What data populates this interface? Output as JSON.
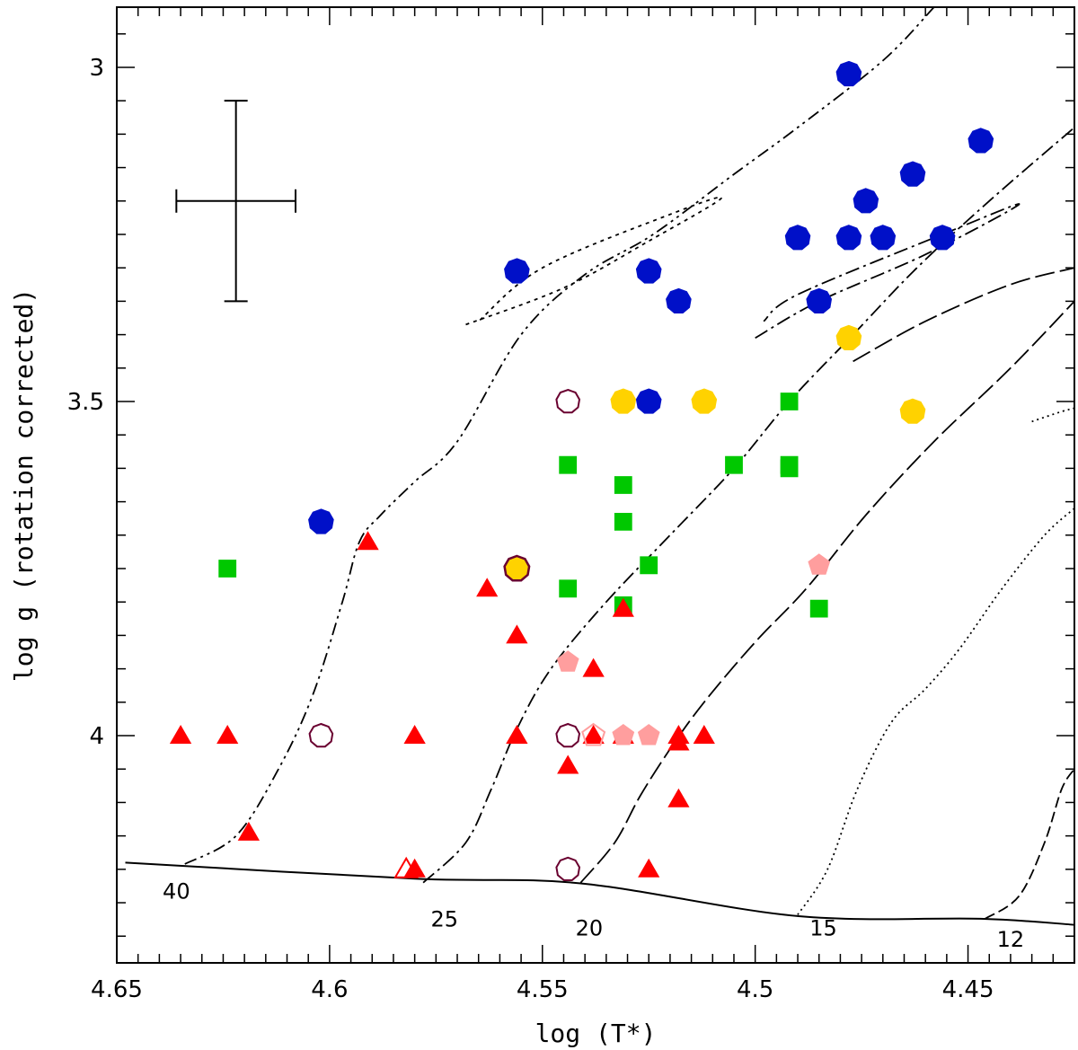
{
  "chart_data": {
    "type": "scatter",
    "xlabel": "log (T*)",
    "ylabel": "log g (rotation corrected)",
    "xlim": [
      4.65,
      4.425
    ],
    "ylim": [
      4.34,
      2.91
    ],
    "x_ticks": [
      {
        "value": 4.65,
        "label": "4.65"
      },
      {
        "value": 4.6,
        "label": "4.6"
      },
      {
        "value": 4.55,
        "label": "4.55"
      },
      {
        "value": 4.5,
        "label": "4.5"
      },
      {
        "value": 4.45,
        "label": "4.45"
      }
    ],
    "y_ticks": [
      {
        "value": 3.0,
        "label": "3"
      },
      {
        "value": 3.5,
        "label": "3.5"
      },
      {
        "value": 4.0,
        "label": "4"
      }
    ],
    "grid": false,
    "legend": "none",
    "zams": [
      [
        4.648,
        4.19
      ],
      [
        4.58,
        4.214
      ],
      [
        4.541,
        4.221
      ],
      [
        4.49,
        4.27
      ],
      [
        4.447,
        4.274
      ],
      [
        4.425,
        4.283
      ]
    ],
    "tracks": [
      {
        "mass_label": "40",
        "label_at": [
          4.636,
          4.233
        ],
        "dash": "14 5 3 5 3 5",
        "points": [
          [
            4.634,
            4.192
          ],
          [
            4.622,
            4.15
          ],
          [
            4.612,
            4.05
          ],
          [
            4.604,
            3.94
          ],
          [
            4.597,
            3.8
          ],
          [
            4.593,
            3.71
          ],
          [
            4.588,
            3.67
          ],
          [
            4.58,
            3.62
          ],
          [
            4.57,
            3.56
          ],
          [
            4.555,
            3.4
          ],
          [
            4.54,
            3.31
          ],
          [
            4.524,
            3.25
          ],
          [
            4.505,
            3.16
          ],
          [
            4.49,
            3.09
          ],
          [
            4.47,
            2.99
          ],
          [
            4.458,
            2.91
          ]
        ]
      },
      {
        "mass_label": "",
        "dash": "4 5",
        "points": [
          [
            4.568,
            3.385
          ],
          [
            4.545,
            3.33
          ],
          [
            4.525,
            3.26
          ],
          [
            4.508,
            3.196
          ],
          [
            4.52,
            3.22
          ],
          [
            4.55,
            3.3
          ],
          [
            4.565,
            3.38
          ]
        ]
      },
      {
        "mass_label": "25",
        "label_at": [
          4.573,
          4.275
        ],
        "dash": "16 5 3 5",
        "points": [
          [
            4.578,
            4.22
          ],
          [
            4.568,
            4.16
          ],
          [
            4.562,
            4.08
          ],
          [
            4.556,
            3.99
          ],
          [
            4.548,
            3.9
          ],
          [
            4.535,
            3.8
          ],
          [
            4.52,
            3.7
          ],
          [
            4.505,
            3.6
          ],
          [
            4.492,
            3.5
          ],
          [
            4.477,
            3.4
          ],
          [
            4.462,
            3.3
          ],
          [
            4.445,
            3.2
          ],
          [
            4.425,
            3.09
          ]
        ]
      },
      {
        "mass_label": "",
        "dash": "16 5 3 5",
        "points": [
          [
            4.5,
            3.405
          ],
          [
            4.485,
            3.35
          ],
          [
            4.46,
            3.28
          ],
          [
            4.438,
            3.205
          ],
          [
            4.456,
            3.25
          ],
          [
            4.49,
            3.34
          ],
          [
            4.498,
            3.38
          ]
        ]
      },
      {
        "mass_label": "20",
        "label_at": [
          4.539,
          4.288
        ],
        "dash": "22 6",
        "points": [
          [
            4.541,
            4.22
          ],
          [
            4.533,
            4.16
          ],
          [
            4.527,
            4.09
          ],
          [
            4.52,
            4.02
          ],
          [
            4.512,
            3.95
          ],
          [
            4.5,
            3.86
          ],
          [
            4.488,
            3.78
          ],
          [
            4.474,
            3.67
          ],
          [
            4.458,
            3.56
          ],
          [
            4.44,
            3.45
          ],
          [
            4.425,
            3.35
          ]
        ]
      },
      {
        "mass_label": "",
        "dash": "22 6",
        "points": [
          [
            4.477,
            3.44
          ],
          [
            4.46,
            3.38
          ],
          [
            4.44,
            3.325
          ],
          [
            4.425,
            3.3
          ]
        ]
      },
      {
        "mass_label": "15",
        "label_at": [
          4.484,
          4.288
        ],
        "dash": "2 4",
        "points": [
          [
            4.49,
            4.268
          ],
          [
            4.483,
            4.2
          ],
          [
            4.476,
            4.08
          ],
          [
            4.468,
            3.98
          ],
          [
            4.46,
            3.93
          ],
          [
            4.452,
            3.87
          ],
          [
            4.442,
            3.78
          ],
          [
            4.432,
            3.7
          ],
          [
            4.425,
            3.66
          ]
        ]
      },
      {
        "mass_label": "",
        "dash": "2 4",
        "points": [
          [
            4.435,
            3.53
          ],
          [
            4.428,
            3.515
          ],
          [
            4.425,
            3.51
          ]
        ]
      },
      {
        "mass_label": "12",
        "label_at": [
          4.44,
          4.305
        ],
        "dash": "12 5",
        "points": [
          [
            4.446,
            4.274
          ],
          [
            4.438,
            4.24
          ],
          [
            4.432,
            4.16
          ],
          [
            4.428,
            4.08
          ],
          [
            4.425,
            4.05
          ]
        ]
      }
    ],
    "error_bar": {
      "x": 4.622,
      "y": 3.2,
      "xerr": 0.014,
      "yerr": 0.15
    },
    "series": [
      {
        "marker": "filled-circle",
        "color": "#0010c8",
        "points": [
          [
            4.478,
            3.01
          ],
          [
            4.447,
            3.11
          ],
          [
            4.463,
            3.16
          ],
          [
            4.474,
            3.2
          ],
          [
            4.49,
            3.255
          ],
          [
            4.478,
            3.255
          ],
          [
            4.47,
            3.255
          ],
          [
            4.456,
            3.255
          ],
          [
            4.556,
            3.305
          ],
          [
            4.525,
            3.305
          ],
          [
            4.518,
            3.35
          ],
          [
            4.485,
            3.35
          ],
          [
            4.525,
            3.5
          ],
          [
            4.602,
            3.68
          ]
        ]
      },
      {
        "marker": "filled-circle",
        "color": "#ffd200",
        "points": [
          [
            4.478,
            3.405
          ],
          [
            4.531,
            3.5
          ],
          [
            4.512,
            3.5
          ],
          [
            4.463,
            3.515
          ]
        ]
      },
      {
        "marker": "filled-circle-outlined",
        "color": "#ffd200",
        "edge": "#6a0030",
        "points": [
          [
            4.556,
            3.75
          ]
        ]
      },
      {
        "marker": "open-circle",
        "color": "#6a0030",
        "points": [
          [
            4.544,
            3.5
          ],
          [
            4.602,
            4.0
          ],
          [
            4.544,
            4.0
          ],
          [
            4.544,
            4.2
          ]
        ]
      },
      {
        "marker": "filled-square",
        "color": "#00c800",
        "points": [
          [
            4.492,
            3.5
          ],
          [
            4.544,
            3.595
          ],
          [
            4.505,
            3.595
          ],
          [
            4.492,
            3.595
          ],
          [
            4.492,
            3.6
          ],
          [
            4.531,
            3.625
          ],
          [
            4.531,
            3.68
          ],
          [
            4.624,
            3.75
          ],
          [
            4.525,
            3.745
          ],
          [
            4.544,
            3.78
          ],
          [
            4.531,
            3.805
          ],
          [
            4.485,
            3.81
          ]
        ]
      },
      {
        "marker": "filled-triangle",
        "color": "#ff0000",
        "points": [
          [
            4.591,
            3.71
          ],
          [
            4.563,
            3.78
          ],
          [
            4.556,
            3.85
          ],
          [
            4.531,
            3.81
          ],
          [
            4.538,
            3.9
          ],
          [
            4.635,
            4.0
          ],
          [
            4.624,
            4.0
          ],
          [
            4.58,
            4.0
          ],
          [
            4.556,
            4.0
          ],
          [
            4.538,
            4.0
          ],
          [
            4.531,
            4.0
          ],
          [
            4.518,
            4.0
          ],
          [
            4.518,
            4.01
          ],
          [
            4.512,
            4.0
          ],
          [
            4.544,
            4.045
          ],
          [
            4.518,
            4.095
          ],
          [
            4.619,
            4.145
          ],
          [
            4.58,
            4.2
          ],
          [
            4.525,
            4.2
          ]
        ]
      },
      {
        "marker": "open-triangle",
        "color": "#ff0000",
        "points": [
          [
            4.582,
            4.2
          ]
        ]
      },
      {
        "marker": "filled-pentagon",
        "color": "#ff9e9e",
        "points": [
          [
            4.485,
            3.745
          ],
          [
            4.544,
            3.89
          ],
          [
            4.531,
            4.0
          ],
          [
            4.525,
            4.0
          ]
        ]
      },
      {
        "marker": "open-pentagon",
        "color": "#ff9e9e",
        "points": [
          [
            4.538,
            4.0
          ]
        ]
      }
    ]
  }
}
